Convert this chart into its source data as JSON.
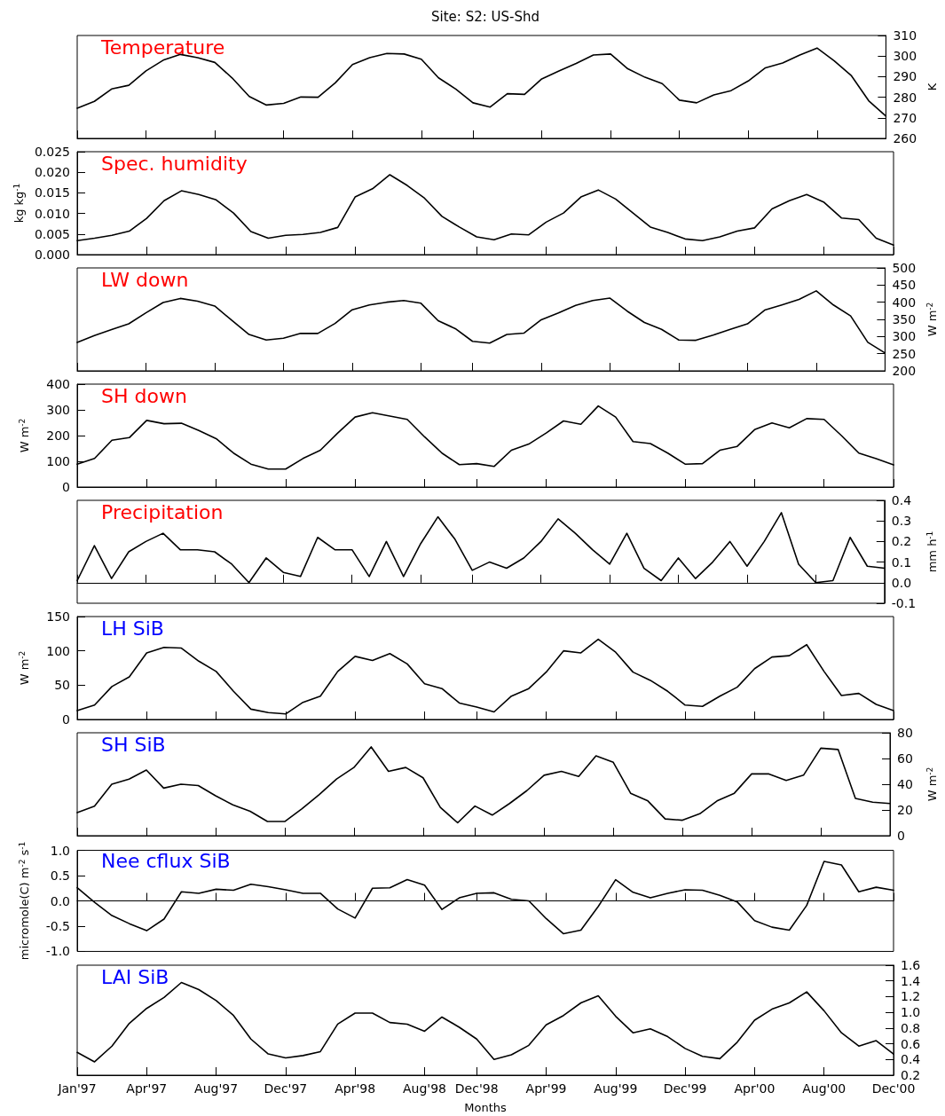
{
  "chart_data": [
    {
      "type": "line",
      "title": "Temperature",
      "annotations": [
        "Site: S2: US-Shd"
      ],
      "ylabel": "K",
      "color": "#000000",
      "marker": "none",
      "line_style": "solid",
      "categories": [
        null,
        null,
        null,
        null,
        null,
        null,
        null,
        null,
        null,
        null,
        null,
        null,
        null,
        null,
        null,
        null,
        null,
        null,
        null,
        null,
        null,
        null,
        null,
        null,
        null,
        null,
        null,
        null,
        null,
        null,
        null,
        null,
        null,
        null,
        null,
        null,
        null,
        null,
        null,
        null,
        null,
        null,
        null,
        null,
        null,
        null,
        null,
        null
      ],
      "values": [
        274.7,
        278,
        284,
        285.8,
        292.8,
        298,
        300.8,
        299.2,
        296.9,
        289.4,
        280.4,
        276.2,
        277,
        280.1,
        280,
        287,
        295.9,
        299.2,
        301.3,
        301,
        298.5,
        289.4,
        284,
        277.3,
        275.2,
        281.7,
        281.4,
        288.9,
        292.8,
        296.4,
        300.5,
        301,
        293.8,
        289.7,
        286.6,
        278.6,
        277.3,
        281.1,
        283.2,
        287.9,
        294.3,
        296.6,
        300.5,
        303.9,
        297.7,
        290.4,
        278.3,
        270.8
      ],
      "ylim": [
        260,
        310
      ],
      "yticks": [
        260,
        270,
        280,
        290,
        300,
        310
      ]
    },
    {
      "type": "line",
      "title": "Spec. humidity",
      "ylabel": "kg kg$^{-1}$",
      "color": "#000000",
      "marker": "none",
      "line_style": "solid",
      "categories": [
        null,
        null,
        null,
        null,
        null,
        null,
        null,
        null,
        null,
        null,
        null,
        null,
        null,
        null,
        null,
        null,
        null,
        null,
        null,
        null,
        null,
        null,
        null,
        null,
        null,
        null,
        null,
        null,
        null,
        null,
        null,
        null,
        null,
        null,
        null,
        null,
        null,
        null,
        null,
        null,
        null,
        null,
        null,
        null,
        null,
        null,
        null,
        null
      ],
      "values": [
        0.0034,
        0.004,
        0.0047,
        0.0057,
        0.0088,
        0.0131,
        0.0155,
        0.0146,
        0.0133,
        0.0101,
        0.0056,
        0.004,
        0.0047,
        0.0049,
        0.0054,
        0.0066,
        0.014,
        0.016,
        0.0194,
        0.0168,
        0.0137,
        0.0093,
        0.0067,
        0.0043,
        0.0036,
        0.005,
        0.0048,
        0.0079,
        0.0101,
        0.014,
        0.0157,
        0.0135,
        0.0101,
        0.0067,
        0.0054,
        0.0038,
        0.0034,
        0.0043,
        0.0057,
        0.0065,
        0.0111,
        0.0131,
        0.0146,
        0.0127,
        0.0089,
        0.0085,
        0.004,
        0.0023
      ],
      "ylim": [
        0,
        0.025
      ],
      "yticks": [
        {
          "value": 0,
          "label": "0.000"
        },
        {
          "value": 0.005,
          "label": "0.005"
        },
        {
          "value": 0.01,
          "label": "0.010"
        },
        {
          "value": 0.015,
          "label": "0.015"
        },
        {
          "value": 0.02,
          "label": "0.020"
        },
        {
          "value": 0.025,
          "label": "0.025"
        }
      ]
    },
    {
      "type": "line",
      "title": "LW down",
      "ylabel": "W m$^{-2}$",
      "color": "#000000",
      "marker": "none",
      "line_style": "solid",
      "categories": [
        null,
        null,
        null,
        null,
        null,
        null,
        null,
        null,
        null,
        null,
        null,
        null,
        null,
        null,
        null,
        null,
        null,
        null,
        null,
        null,
        null,
        null,
        null,
        null,
        null,
        null,
        null,
        null,
        null,
        null,
        null,
        null,
        null,
        null,
        null,
        null,
        null,
        null,
        null,
        null,
        null,
        null,
        null,
        null,
        null,
        null,
        null,
        null
      ],
      "values": [
        283,
        303,
        320,
        337,
        369,
        399,
        411,
        403,
        389,
        347,
        306,
        290,
        295,
        309,
        309,
        338,
        378,
        392,
        400,
        405,
        397,
        346,
        323,
        286,
        281,
        306,
        310,
        349,
        369,
        391,
        405,
        412,
        374,
        341,
        321,
        290,
        289,
        304,
        321,
        337,
        377,
        392,
        408,
        433,
        392,
        360,
        283,
        252
      ],
      "ylim": [
        200,
        500
      ],
      "yticks": [
        200,
        250,
        300,
        350,
        400,
        450,
        500
      ]
    },
    {
      "type": "line",
      "title": "SH down",
      "ylabel": "W m$^{-2}$",
      "color": "#000000",
      "marker": "none",
      "line_style": "solid",
      "categories": [
        null,
        null,
        null,
        null,
        null,
        null,
        null,
        null,
        null,
        null,
        null,
        null,
        null,
        null,
        null,
        null,
        null,
        null,
        null,
        null,
        null,
        null,
        null,
        null,
        null,
        null,
        null,
        null,
        null,
        null,
        null,
        null,
        null,
        null,
        null,
        null,
        null,
        null,
        null,
        null,
        null,
        null,
        null,
        null,
        null,
        null,
        null,
        null
      ],
      "values": [
        89,
        111,
        182,
        192,
        259,
        246,
        248,
        220,
        188,
        132,
        89,
        70,
        70,
        111,
        143,
        210,
        272,
        289,
        276,
        263,
        195,
        132,
        87,
        91,
        80,
        143,
        167,
        210,
        257,
        244,
        315,
        272,
        177,
        169,
        132,
        89,
        91,
        143,
        158,
        223,
        249,
        230,
        266,
        263,
        200,
        132,
        110,
        86
      ],
      "ylim": [
        0,
        400
      ],
      "yticks": [
        0,
        100,
        200,
        300,
        400
      ]
    },
    {
      "type": "line",
      "title": "Precipitation",
      "ylabel": "mm h$^{-1}$",
      "color": "#000000",
      "marker": "none",
      "line_style": "solid",
      "categories": [
        null,
        null,
        null,
        null,
        null,
        null,
        null,
        null,
        null,
        null,
        null,
        null,
        null,
        null,
        null,
        null,
        null,
        null,
        null,
        null,
        null,
        null,
        null,
        null,
        null,
        null,
        null,
        null,
        null,
        null,
        null,
        null,
        null,
        null,
        null,
        null,
        null,
        null,
        null,
        null,
        null,
        null,
        null,
        null,
        null,
        null,
        null,
        null
      ],
      "values": [
        0.01,
        0.18,
        0.02,
        0.15,
        0.2,
        0.24,
        0.16,
        0.16,
        0.15,
        0.09,
        0,
        0.12,
        0.05,
        0.03,
        0.22,
        0.16,
        0.16,
        0.03,
        0.2,
        0.03,
        0.19,
        0.32,
        0.21,
        0.06,
        0.1,
        0.07,
        0.12,
        0.2,
        0.31,
        0.24,
        0.16,
        0.09,
        0.24,
        0.07,
        0.01,
        0.12,
        0.02,
        0.1,
        0.2,
        0.08,
        0.2,
        0.34,
        0.09,
        0,
        0.01,
        0.22,
        0.08,
        0.07
      ],
      "ylim": [
        -0.1,
        0.4
      ],
      "yticks": [
        -0.1,
        {
          "value": 0,
          "label": "0.0"
        },
        0.1,
        0.2,
        0.3,
        0.4
      ]
    },
    {
      "type": "line",
      "title": "LH SiB",
      "ylabel": "W m$^{-2}$",
      "color": "#000000",
      "marker": "none",
      "line_style": "solid",
      "categories": [
        null,
        null,
        null,
        null,
        null,
        null,
        null,
        null,
        null,
        null,
        null,
        null,
        null,
        null,
        null,
        null,
        null,
        null,
        null,
        null,
        null,
        null,
        null,
        null,
        null,
        null,
        null,
        null,
        null,
        null,
        null,
        null,
        null,
        null,
        null,
        null,
        null,
        null,
        null,
        null,
        null,
        null,
        null,
        null,
        null,
        null,
        null,
        null
      ],
      "values": [
        13,
        21,
        48,
        62,
        97,
        105,
        104,
        85,
        70,
        41,
        15,
        10,
        8,
        25,
        34,
        70,
        92,
        86,
        96,
        81,
        52,
        45,
        24,
        18,
        11,
        34,
        45,
        69,
        100,
        97,
        117,
        98,
        69,
        57,
        41,
        21,
        19,
        34,
        47,
        74,
        91,
        93,
        109,
        70,
        35,
        38,
        22,
        13
      ],
      "ylim": [
        0,
        150
      ],
      "yticks": [
        0,
        50,
        100,
        150
      ]
    },
    {
      "type": "line",
      "title": "SH SiB",
      "ylabel": "W m$^{-2}$",
      "color": "#000000",
      "marker": "none",
      "line_style": "solid",
      "categories": [
        null,
        null,
        null,
        null,
        null,
        null,
        null,
        null,
        null,
        null,
        null,
        null,
        null,
        null,
        null,
        null,
        null,
        null,
        null,
        null,
        null,
        null,
        null,
        null,
        null,
        null,
        null,
        null,
        null,
        null,
        null,
        null,
        null,
        null,
        null,
        null,
        null,
        null,
        null,
        null,
        null,
        null,
        null,
        null,
        null,
        null,
        null,
        null
      ],
      "values": [
        18,
        23,
        40,
        44,
        51,
        37,
        40,
        39,
        31,
        24,
        19,
        11,
        11,
        21,
        32,
        44,
        53,
        69,
        50,
        53,
        45,
        22,
        10,
        23,
        16,
        25,
        35,
        47,
        50,
        46,
        62,
        57,
        33,
        27,
        13,
        12,
        17,
        27,
        33,
        48,
        48,
        43,
        47,
        68,
        67,
        29,
        26,
        25
      ],
      "ylim": [
        0,
        80
      ],
      "yticks": [
        0,
        20,
        40,
        60,
        80
      ]
    },
    {
      "type": "line",
      "title": "Nee cflux SiB",
      "ylabel": "micromole(C) m$^{-2}$ s$^{-1}$",
      "color": "#000000",
      "marker": "none",
      "line_style": "solid",
      "categories": [
        null,
        null,
        null,
        null,
        null,
        null,
        null,
        null,
        null,
        null,
        null,
        null,
        null,
        null,
        null,
        null,
        null,
        null,
        null,
        null,
        null,
        null,
        null,
        null,
        null,
        null,
        null,
        null,
        null,
        null,
        null,
        null,
        null,
        null,
        null,
        null,
        null,
        null,
        null,
        null,
        null,
        null,
        null,
        null,
        null,
        null,
        null,
        null
      ],
      "values": [
        0.26,
        -0.03,
        -0.29,
        -0.45,
        -0.59,
        -0.36,
        0.18,
        0.15,
        0.23,
        0.21,
        0.33,
        0.28,
        0.22,
        0.15,
        0.15,
        -0.16,
        -0.34,
        0.25,
        0.26,
        0.42,
        0.31,
        -0.17,
        0.06,
        0.15,
        0.16,
        0.03,
        0,
        -0.35,
        -0.65,
        -0.58,
        -0.11,
        0.42,
        0.17,
        0.06,
        0.15,
        0.22,
        0.21,
        0.11,
        -0.02,
        -0.39,
        -0.52,
        -0.58,
        -0.09,
        0.78,
        0.71,
        0.18,
        0.27,
        0.21
      ],
      "ylim": [
        -1,
        1
      ],
      "yticks": [
        {
          "value": -1,
          "label": "-1.0"
        },
        -0.5,
        {
          "value": 0,
          "label": "0.0"
        },
        0.5,
        {
          "value": 1,
          "label": "1.0"
        }
      ]
    },
    {
      "type": "line",
      "title": "LAI SiB",
      "xlabel": "Months",
      "color": "#000000",
      "marker": "none",
      "line_style": "solid",
      "categories": [
        "Jan'97",
        null,
        null,
        null,
        "Apr'97",
        null,
        null,
        null,
        "Aug'97",
        null,
        null,
        null,
        "Dec'97",
        null,
        null,
        null,
        "Apr'98",
        null,
        null,
        null,
        "Aug'98",
        null,
        null,
        "Dec'98",
        null,
        null,
        null,
        "Apr'99",
        null,
        null,
        null,
        "Aug'99",
        null,
        null,
        null,
        "Dec'99",
        null,
        null,
        null,
        "Apr'00",
        null,
        null,
        null,
        "Aug'00",
        null,
        null,
        null,
        "Dec'00"
      ],
      "values": [
        0.49,
        0.37,
        0.57,
        0.86,
        1.05,
        1.19,
        1.38,
        1.29,
        1.15,
        0.96,
        0.66,
        0.47,
        0.42,
        0.45,
        0.5,
        0.85,
        0.99,
        0.99,
        0.87,
        0.85,
        0.76,
        0.94,
        0.81,
        0.66,
        0.4,
        0.46,
        0.58,
        0.84,
        0.96,
        1.12,
        1.21,
        0.95,
        0.74,
        0.79,
        0.69,
        0.54,
        0.44,
        0.41,
        0.62,
        0.9,
        1.04,
        1.12,
        1.26,
        1.02,
        0.74,
        0.57,
        0.64,
        0.47
      ],
      "ylim": [
        0.2,
        1.6
      ],
      "yticks": [
        0.2,
        0.4,
        0.6,
        0.8,
        {
          "value": 1,
          "label": "1.0"
        },
        1.2,
        1.4,
        1.6
      ]
    }
  ]
}
